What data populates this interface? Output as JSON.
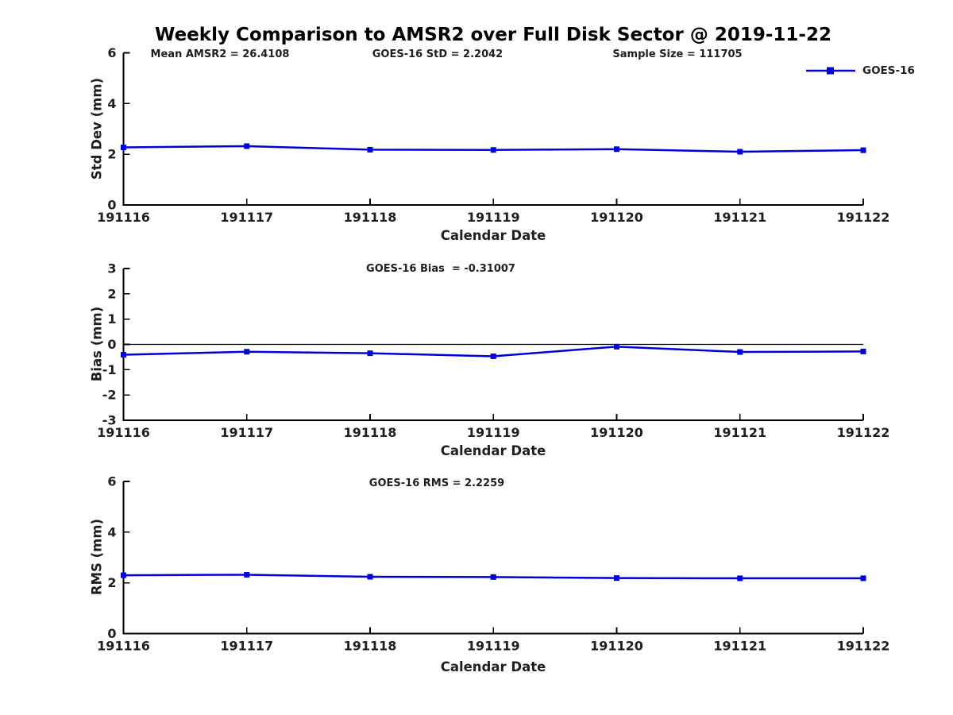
{
  "figure": {
    "title": "Weekly Comparison to AMSR2 over Full Disk Sector @ 2019-11-22",
    "legend": {
      "label": "GOES-16",
      "color": "#0000dd",
      "marker": "square"
    }
  },
  "chart_data": [
    {
      "type": "line",
      "name": "std-dev",
      "annotations": [
        "Mean AMSR2 = 26.4108",
        "GOES-16 StD = 2.2042",
        "Sample Size = 111705"
      ],
      "ylabel": "Std Dev (mm)",
      "xlabel": "Calendar Date",
      "categories": [
        "191116",
        "191117",
        "191118",
        "191119",
        "191120",
        "191121",
        "191122"
      ],
      "series": [
        {
          "name": "GOES-16",
          "color": "#0000dd",
          "marker": "square",
          "values": [
            2.27,
            2.32,
            2.18,
            2.17,
            2.2,
            2.1,
            2.16
          ]
        }
      ],
      "ylim": [
        0,
        6
      ],
      "yticks": [
        0,
        2,
        4,
        6
      ],
      "zero_line": false,
      "grid": false,
      "legend_position": "top-right"
    },
    {
      "type": "line",
      "name": "bias",
      "annotations": [
        "GOES-16 Bias  = -0.31007"
      ],
      "ylabel": "Bias (mm)",
      "xlabel": "Calendar Date",
      "categories": [
        "191116",
        "191117",
        "191118",
        "191119",
        "191120",
        "191121",
        "191122"
      ],
      "series": [
        {
          "name": "GOES-16",
          "color": "#0000dd",
          "marker": "square",
          "values": [
            -0.41,
            -0.29,
            -0.35,
            -0.47,
            -0.09,
            -0.3,
            -0.28
          ]
        }
      ],
      "ylim": [
        -3,
        3
      ],
      "yticks": [
        -3,
        -2,
        -1,
        0,
        1,
        2,
        3
      ],
      "zero_line": true,
      "grid": false,
      "legend_position": "none"
    },
    {
      "type": "line",
      "name": "rms",
      "annotations": [
        "GOES-16 RMS = 2.2259"
      ],
      "ylabel": "RMS (mm)",
      "xlabel": "Calendar Date",
      "categories": [
        "191116",
        "191117",
        "191118",
        "191119",
        "191120",
        "191121",
        "191122"
      ],
      "series": [
        {
          "name": "GOES-16",
          "color": "#0000dd",
          "marker": "square",
          "values": [
            2.3,
            2.32,
            2.24,
            2.23,
            2.19,
            2.18,
            2.18
          ]
        }
      ],
      "ylim": [
        0,
        6
      ],
      "yticks": [
        0,
        2,
        4,
        6
      ],
      "zero_line": false,
      "grid": false,
      "legend_position": "none"
    }
  ]
}
